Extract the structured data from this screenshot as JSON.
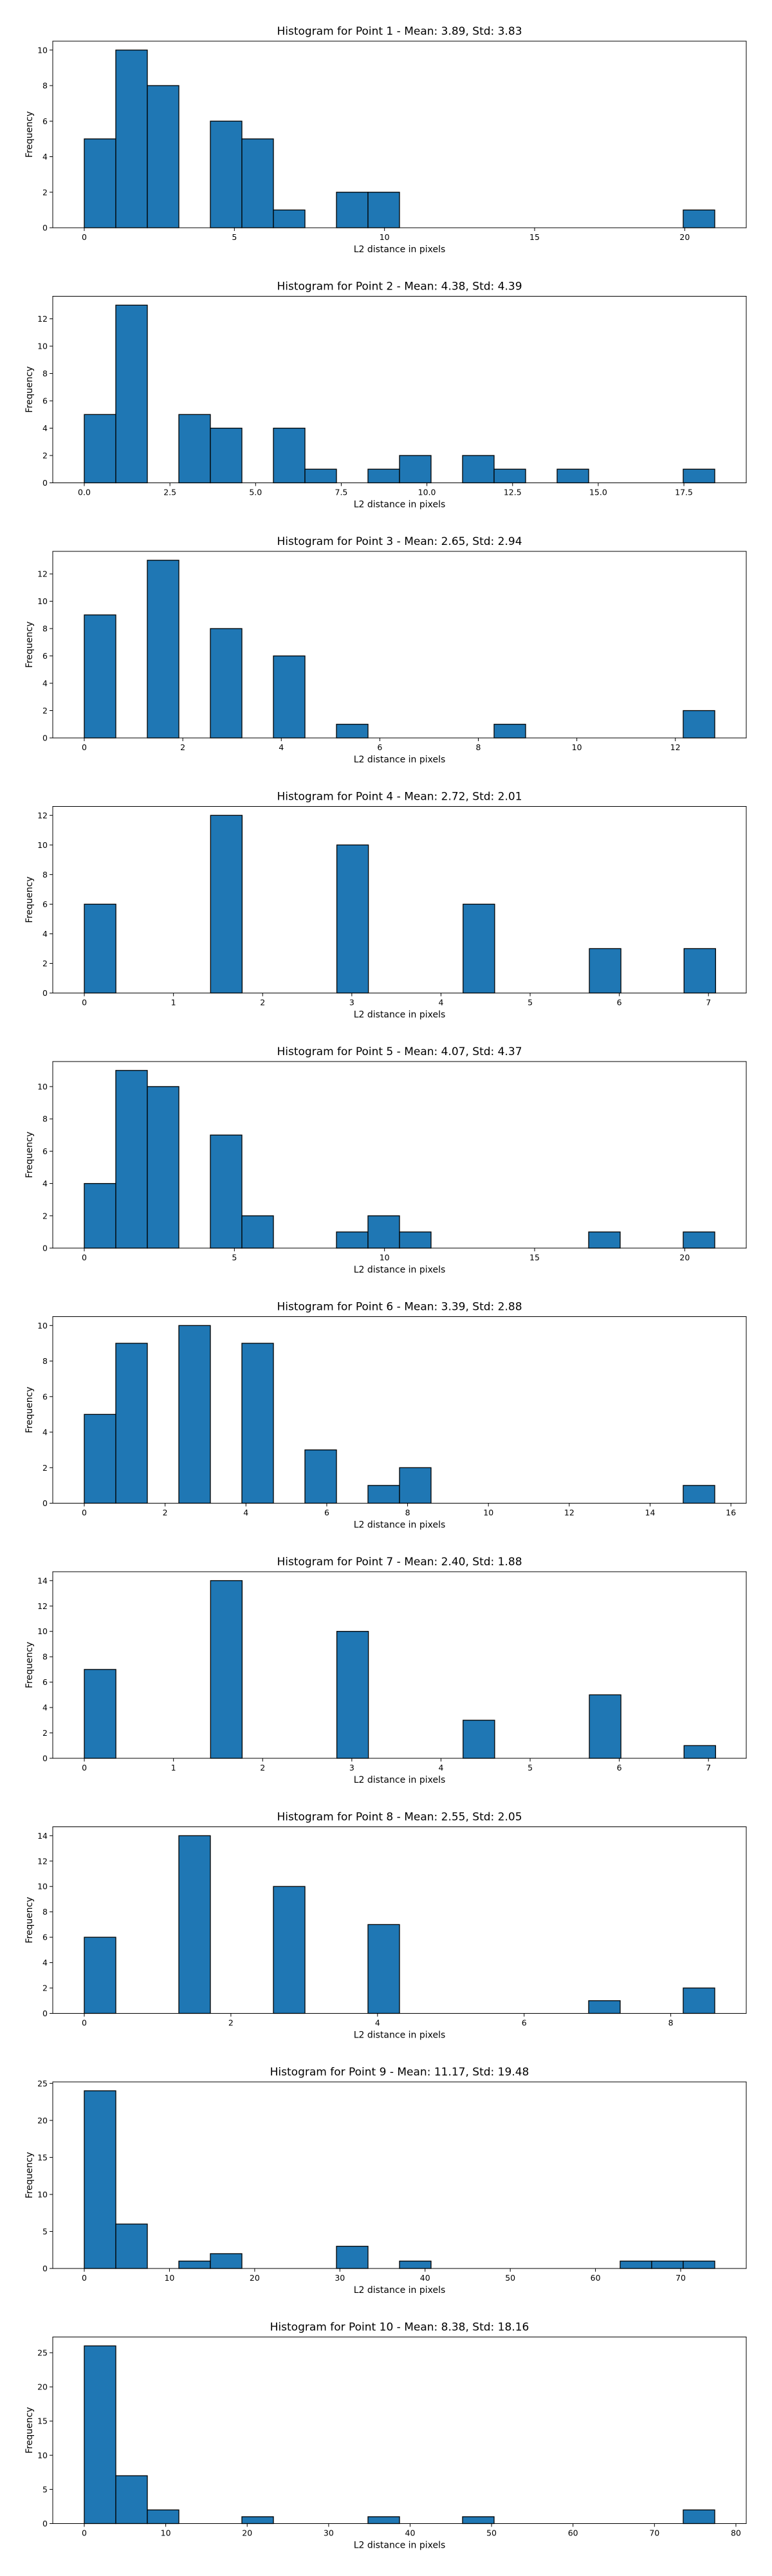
{
  "figure": {
    "bar_color": "#1f77b4",
    "edge_color": "#000000"
  },
  "chart_data": [
    {
      "type": "bar",
      "title": "Histogram for Point 1 - Mean: 3.89, Std: 3.83",
      "xlabel": "L2 distance in pixels",
      "ylabel": "Frequency",
      "xlim": [
        -1.05,
        22.05
      ],
      "ylim": [
        0,
        10.5
      ],
      "xticks": [
        0,
        5,
        10,
        15,
        20
      ],
      "yticks": [
        0,
        2,
        4,
        6,
        8,
        10
      ],
      "bin_edges": [
        0,
        1.05,
        2.1,
        3.15,
        4.2,
        5.25,
        6.3,
        7.35,
        8.4,
        9.45,
        10.5,
        11.55,
        12.6,
        13.65,
        14.7,
        15.75,
        16.8,
        17.85,
        18.9,
        19.95,
        21.0
      ],
      "values": [
        5,
        10,
        8,
        0,
        6,
        5,
        1,
        0,
        2,
        2,
        0,
        0,
        0,
        0,
        0,
        0,
        0,
        0,
        0,
        1
      ]
    },
    {
      "type": "bar",
      "title": "Histogram for Point 2 - Mean: 4.38, Std: 4.39",
      "xlabel": "L2 distance in pixels",
      "ylabel": "Frequency",
      "xlim": [
        -0.92,
        19.32
      ],
      "ylim": [
        0,
        13.65
      ],
      "xticks": [
        "0.0",
        "2.5",
        "5.0",
        "7.5",
        "10.0",
        "12.5",
        "15.0",
        "17.5"
      ],
      "yticks": [
        0,
        2,
        4,
        6,
        8,
        10,
        12
      ],
      "bin_edges": [
        0,
        0.92,
        1.84,
        2.76,
        3.68,
        4.6,
        5.52,
        6.44,
        7.36,
        8.28,
        9.2,
        10.12,
        11.04,
        11.96,
        12.88,
        13.8,
        14.72,
        15.64,
        16.56,
        17.48,
        18.4
      ],
      "values": [
        5,
        13,
        0,
        5,
        4,
        0,
        4,
        1,
        0,
        1,
        2,
        0,
        2,
        1,
        0,
        1,
        0,
        0,
        0,
        1
      ]
    },
    {
      "type": "bar",
      "title": "Histogram for Point 3 - Mean: 2.65, Std: 2.94",
      "xlabel": "L2 distance in pixels",
      "ylabel": "Frequency",
      "xlim": [
        -0.64,
        13.44
      ],
      "ylim": [
        0,
        13.65
      ],
      "xticks": [
        0,
        2,
        4,
        6,
        8,
        10,
        12
      ],
      "yticks": [
        0,
        2,
        4,
        6,
        8,
        10,
        12
      ],
      "bin_edges": [
        0,
        0.64,
        1.28,
        1.92,
        2.56,
        3.2,
        3.84,
        4.48,
        5.12,
        5.76,
        6.4,
        7.04,
        7.68,
        8.32,
        8.96,
        9.6,
        10.24,
        10.88,
        11.52,
        12.16,
        12.8
      ],
      "values": [
        9,
        0,
        13,
        0,
        8,
        0,
        6,
        0,
        1,
        0,
        0,
        0,
        0,
        1,
        0,
        0,
        0,
        0,
        0,
        2
      ]
    },
    {
      "type": "bar",
      "title": "Histogram for Point 4 - Mean: 2.72, Std: 2.01",
      "xlabel": "L2 distance in pixels",
      "ylabel": "Frequency",
      "xlim": [
        -0.354,
        7.424
      ],
      "ylim": [
        0,
        12.6
      ],
      "xticks": [
        0,
        1,
        2,
        3,
        4,
        5,
        6,
        7
      ],
      "yticks": [
        0,
        2,
        4,
        6,
        8,
        10,
        12
      ],
      "bin_edges": [
        0,
        0.354,
        0.708,
        1.062,
        1.416,
        1.77,
        2.124,
        2.478,
        2.832,
        3.186,
        3.54,
        3.894,
        4.248,
        4.602,
        4.956,
        5.31,
        5.664,
        6.018,
        6.372,
        6.726,
        7.08
      ],
      "values": [
        6,
        0,
        0,
        0,
        12,
        0,
        0,
        0,
        10,
        0,
        0,
        0,
        6,
        0,
        0,
        0,
        3,
        0,
        0,
        3
      ]
    },
    {
      "type": "bar",
      "title": "Histogram for Point 5 - Mean: 4.07, Std: 4.37",
      "xlabel": "L2 distance in pixels",
      "ylabel": "Frequency",
      "xlim": [
        -1.05,
        22.05
      ],
      "ylim": [
        0,
        11.55
      ],
      "xticks": [
        0,
        5,
        10,
        15,
        20
      ],
      "yticks": [
        0,
        2,
        4,
        6,
        8,
        10
      ],
      "bin_edges": [
        0,
        1.05,
        2.1,
        3.15,
        4.2,
        5.25,
        6.3,
        7.35,
        8.4,
        9.45,
        10.5,
        11.55,
        12.6,
        13.65,
        14.7,
        15.75,
        16.8,
        17.85,
        18.9,
        19.95,
        21.0
      ],
      "values": [
        4,
        11,
        10,
        0,
        7,
        2,
        0,
        0,
        1,
        2,
        1,
        0,
        0,
        0,
        0,
        0,
        1,
        0,
        0,
        1
      ]
    },
    {
      "type": "bar",
      "title": "Histogram for Point 6 - Mean: 3.39, Std: 2.88",
      "xlabel": "L2 distance in pixels",
      "ylabel": "Frequency",
      "xlim": [
        -0.78,
        16.38
      ],
      "ylim": [
        0,
        10.5
      ],
      "xticks": [
        0,
        2,
        4,
        6,
        8,
        10,
        12,
        14,
        16
      ],
      "yticks": [
        0,
        2,
        4,
        6,
        8,
        10
      ],
      "bin_edges": [
        0,
        0.78,
        1.56,
        2.34,
        3.12,
        3.9,
        4.68,
        5.46,
        6.24,
        7.02,
        7.8,
        8.58,
        9.36,
        10.14,
        10.92,
        11.7,
        12.48,
        13.26,
        14.04,
        14.82,
        15.6
      ],
      "values": [
        5,
        9,
        0,
        10,
        0,
        9,
        0,
        3,
        0,
        1,
        2,
        0,
        0,
        0,
        0,
        0,
        0,
        0,
        0,
        1
      ]
    },
    {
      "type": "bar",
      "title": "Histogram for Point 7 - Mean: 2.40, Std: 1.88",
      "xlabel": "L2 distance in pixels",
      "ylabel": "Frequency",
      "xlim": [
        -0.354,
        7.424
      ],
      "ylim": [
        0,
        14.7
      ],
      "xticks": [
        0,
        1,
        2,
        3,
        4,
        5,
        6,
        7
      ],
      "yticks": [
        0,
        2,
        4,
        6,
        8,
        10,
        12,
        14
      ],
      "bin_edges": [
        0,
        0.354,
        0.708,
        1.062,
        1.416,
        1.77,
        2.124,
        2.478,
        2.832,
        3.186,
        3.54,
        3.894,
        4.248,
        4.602,
        4.956,
        5.31,
        5.664,
        6.018,
        6.372,
        6.726,
        7.08
      ],
      "values": [
        7,
        0,
        0,
        0,
        14,
        0,
        0,
        0,
        10,
        0,
        0,
        0,
        3,
        0,
        0,
        0,
        5,
        0,
        0,
        1
      ]
    },
    {
      "type": "bar",
      "title": "Histogram for Point 8 - Mean: 2.55, Std: 2.05",
      "xlabel": "L2 distance in pixels",
      "ylabel": "Frequency",
      "xlim": [
        -0.43,
        9.03
      ],
      "ylim": [
        0,
        14.7
      ],
      "xticks": [
        0,
        2,
        4,
        6,
        8
      ],
      "yticks": [
        0,
        2,
        4,
        6,
        8,
        10,
        12,
        14
      ],
      "bin_edges": [
        0,
        0.43,
        0.86,
        1.29,
        1.72,
        2.15,
        2.58,
        3.01,
        3.44,
        3.87,
        4.3,
        4.73,
        5.16,
        5.59,
        6.02,
        6.45,
        6.88,
        7.31,
        7.74,
        8.17,
        8.6
      ],
      "values": [
        6,
        0,
        0,
        14,
        0,
        0,
        10,
        0,
        0,
        7,
        0,
        0,
        0,
        0,
        0,
        0,
        1,
        0,
        0,
        2
      ]
    },
    {
      "type": "bar",
      "title": "Histogram for Point 9 - Mean: 11.17, Std: 19.48",
      "xlabel": "L2 distance in pixels",
      "ylabel": "Frequency",
      "xlim": [
        -3.7,
        77.7
      ],
      "ylim": [
        0,
        25.2
      ],
      "xticks": [
        0,
        10,
        20,
        30,
        40,
        50,
        60,
        70
      ],
      "yticks": [
        0,
        5,
        10,
        15,
        20,
        25
      ],
      "bin_edges": [
        0,
        3.7,
        7.4,
        11.1,
        14.8,
        18.5,
        22.2,
        25.9,
        29.6,
        33.3,
        37.0,
        40.7,
        44.4,
        48.1,
        51.8,
        55.5,
        59.2,
        62.9,
        66.6,
        70.3,
        74.0
      ],
      "values": [
        24,
        6,
        0,
        1,
        2,
        0,
        0,
        0,
        3,
        0,
        1,
        0,
        0,
        0,
        0,
        0,
        0,
        1,
        1,
        1
      ]
    },
    {
      "type": "bar",
      "title": "Histogram for Point 10 - Mean: 8.38, Std: 18.16",
      "xlabel": "L2 distance in pixels",
      "ylabel": "Frequency",
      "xlim": [
        -3.87,
        81.27
      ],
      "ylim": [
        0,
        27.3
      ],
      "xticks": [
        0,
        10,
        20,
        30,
        40,
        50,
        60,
        70,
        80
      ],
      "yticks": [
        0,
        5,
        10,
        15,
        20,
        25
      ],
      "bin_edges": [
        0,
        3.87,
        7.74,
        11.61,
        15.48,
        19.35,
        23.22,
        27.09,
        30.96,
        34.83,
        38.7,
        42.57,
        46.44,
        50.31,
        54.18,
        58.05,
        61.92,
        65.79,
        69.66,
        73.53,
        77.4
      ],
      "values": [
        26,
        7,
        2,
        0,
        0,
        1,
        0,
        0,
        0,
        1,
        0,
        0,
        1,
        0,
        0,
        0,
        0,
        0,
        0,
        2
      ]
    }
  ]
}
